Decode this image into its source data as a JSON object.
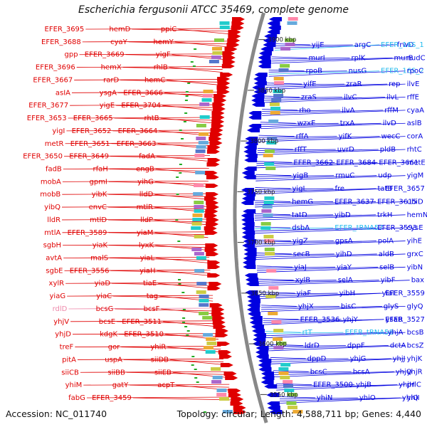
{
  "title": "Escherichia fergusonii ATCC 35469, complete genome",
  "accession": "Accession: NC_011740",
  "topology": "Topology: circular; Length: 4,588,711 bp; Genes: 4,440",
  "colors": {
    "forward": "#e00000",
    "reverse": "#0000e0",
    "rna": "#22bbee",
    "pseudo": "#ee88aa",
    "backbone": "#888888"
  },
  "kbp_ticks": [
    {
      "label": "3550 kbp",
      "kbp": 3550
    },
    {
      "label": "3600 kbp",
      "kbp": 3600
    },
    {
      "label": "3650 kbp",
      "kbp": 3650
    },
    {
      "label": "3700 kbp",
      "kbp": 3700
    },
    {
      "label": "3750 kbp",
      "kbp": 3750
    },
    {
      "label": "3800 kbp",
      "kbp": 3800
    },
    {
      "label": "3850 kbp",
      "kbp": 3850
    },
    {
      "label": "3900 kbp",
      "kbp": 3900
    }
  ],
  "left_labels": [
    {
      "text": "EFER_3695",
      "kind": "forward"
    },
    {
      "text": "hemD",
      "kind": "forward"
    },
    {
      "text": "ppiC",
      "kind": "forward"
    },
    {
      "text": "EFER_3688",
      "kind": "forward"
    },
    {
      "text": "cyaY",
      "kind": "forward"
    },
    {
      "text": "hemY",
      "kind": "forward"
    },
    {
      "text": "gpp",
      "kind": "forward"
    },
    {
      "text": "EFER_3669",
      "kind": "forward"
    },
    {
      "text": "yigF",
      "kind": "forward"
    },
    {
      "text": "EFER_3696",
      "kind": "forward"
    },
    {
      "text": "hemX",
      "kind": "forward"
    },
    {
      "text": "rhlB",
      "kind": "forward"
    },
    {
      "text": "EFER_3667",
      "kind": "forward"
    },
    {
      "text": "rarD",
      "kind": "forward"
    },
    {
      "text": "hemC",
      "kind": "forward"
    },
    {
      "text": "asIA",
      "kind": "forward"
    },
    {
      "text": "ysgA",
      "kind": "forward"
    },
    {
      "text": "EFER_3666",
      "kind": "forward"
    },
    {
      "text": "EFER_3677",
      "kind": "forward"
    },
    {
      "text": "yigE",
      "kind": "forward"
    },
    {
      "text": "EFER_3704",
      "kind": "forward"
    },
    {
      "text": "EFER_3653",
      "kind": "forward"
    },
    {
      "text": "EFER_3665",
      "kind": "forward"
    },
    {
      "text": "rhtB",
      "kind": "forward"
    },
    {
      "text": "yigI",
      "kind": "forward"
    },
    {
      "text": "EFER_3652",
      "kind": "forward"
    },
    {
      "text": "EFER_3664",
      "kind": "forward"
    },
    {
      "text": "metR",
      "kind": "forward"
    },
    {
      "text": "EFER_3651",
      "kind": "forward"
    },
    {
      "text": "EFER_3663",
      "kind": "forward"
    },
    {
      "text": "EFER_3650",
      "kind": "forward"
    },
    {
      "text": "EFER_3649",
      "kind": "forward"
    },
    {
      "text": "fadA",
      "kind": "forward"
    },
    {
      "text": "fadB",
      "kind": "forward"
    },
    {
      "text": "rfaH",
      "kind": "forward"
    },
    {
      "text": "engB",
      "kind": "forward"
    },
    {
      "text": "mobA",
      "kind": "forward"
    },
    {
      "text": "gpmI",
      "kind": "forward"
    },
    {
      "text": "yihG",
      "kind": "forward"
    },
    {
      "text": "mobB",
      "kind": "forward"
    },
    {
      "text": "yibK",
      "kind": "forward"
    },
    {
      "text": "lldD",
      "kind": "forward"
    },
    {
      "text": "yibQ",
      "kind": "forward"
    },
    {
      "text": "envC",
      "kind": "forward"
    },
    {
      "text": "mtlR",
      "kind": "forward"
    },
    {
      "text": "lldR",
      "kind": "forward"
    },
    {
      "text": "mtlD",
      "kind": "forward"
    },
    {
      "text": "lldP",
      "kind": "forward"
    },
    {
      "text": "mtlA",
      "kind": "forward"
    },
    {
      "text": "EFER_3589",
      "kind": "forward"
    },
    {
      "text": "yiaM",
      "kind": "forward"
    },
    {
      "text": "sgbH",
      "kind": "forward"
    },
    {
      "text": "yiaK",
      "kind": "forward"
    },
    {
      "text": "lyxK",
      "kind": "forward"
    },
    {
      "text": "avtA",
      "kind": "forward"
    },
    {
      "text": "malS",
      "kind": "forward"
    },
    {
      "text": "yiaL",
      "kind": "forward"
    },
    {
      "text": "sgbE",
      "kind": "forward"
    },
    {
      "text": "EFER_3556",
      "kind": "forward"
    },
    {
      "text": "yiaH",
      "kind": "forward"
    },
    {
      "text": "xylR",
      "kind": "forward"
    },
    {
      "text": "yiaD",
      "kind": "forward"
    },
    {
      "text": "tiaE",
      "kind": "forward"
    },
    {
      "text": "yiaG",
      "kind": "forward"
    },
    {
      "text": "yiaC",
      "kind": "forward"
    },
    {
      "text": "tag",
      "kind": "forward"
    },
    {
      "text": "rdlD",
      "kind": "pseudo"
    },
    {
      "text": "bcsG",
      "kind": "forward"
    },
    {
      "text": "bcsF",
      "kind": "forward"
    },
    {
      "text": "yhjV",
      "kind": "forward"
    },
    {
      "text": "bcsE",
      "kind": "forward"
    },
    {
      "text": "EFER_3511",
      "kind": "forward"
    },
    {
      "text": "yhjD",
      "kind": "forward"
    },
    {
      "text": "kdgK",
      "kind": "forward"
    },
    {
      "text": "EFER_3510",
      "kind": "forward"
    },
    {
      "text": "treF",
      "kind": "forward"
    },
    {
      "text": "gor",
      "kind": "forward"
    },
    {
      "text": "yhiR",
      "kind": "forward"
    },
    {
      "text": "pitA",
      "kind": "forward"
    },
    {
      "text": "uspA",
      "kind": "forward"
    },
    {
      "text": "siiDB",
      "kind": "forward"
    },
    {
      "text": "siiCB",
      "kind": "forward"
    },
    {
      "text": "siiBB",
      "kind": "forward"
    },
    {
      "text": "siiEB",
      "kind": "forward"
    },
    {
      "text": "yhiM",
      "kind": "forward"
    },
    {
      "text": "gatY",
      "kind": "forward"
    },
    {
      "text": "acpT",
      "kind": "forward"
    },
    {
      "text": "fabG",
      "kind": "forward"
    },
    {
      "text": "EFER_3459",
      "kind": "forward"
    }
  ],
  "right_labels": [
    {
      "text": "yijE",
      "kind": "reverse"
    },
    {
      "text": "argC",
      "kind": "reverse"
    },
    {
      "text": "frwD",
      "kind": "reverse"
    },
    {
      "text": "EFER_16S_1",
      "kind": "rna"
    },
    {
      "text": "murI",
      "kind": "reverse"
    },
    {
      "text": "rplK",
      "kind": "reverse"
    },
    {
      "text": "murB",
      "kind": "reverse"
    },
    {
      "text": "nudC",
      "kind": "reverse"
    },
    {
      "text": "rpoB",
      "kind": "reverse"
    },
    {
      "text": "nusG",
      "kind": "reverse"
    },
    {
      "text": "EFER_16S_2",
      "kind": "rna"
    },
    {
      "text": "rpoC",
      "kind": "reverse"
    },
    {
      "text": "yifE",
      "kind": "reverse"
    },
    {
      "text": "zraR",
      "kind": "reverse"
    },
    {
      "text": "rep",
      "kind": "reverse"
    },
    {
      "text": "ilvE",
      "kind": "reverse"
    },
    {
      "text": "zraS",
      "kind": "reverse"
    },
    {
      "text": "ilvC",
      "kind": "reverse"
    },
    {
      "text": "ilvL",
      "kind": "reverse"
    },
    {
      "text": "rffE",
      "kind": "reverse"
    },
    {
      "text": "rho",
      "kind": "reverse"
    },
    {
      "text": "ilvA",
      "kind": "reverse"
    },
    {
      "text": "rffM",
      "kind": "reverse"
    },
    {
      "text": "cyaA",
      "kind": "reverse"
    },
    {
      "text": "wzxE",
      "kind": "reverse"
    },
    {
      "text": "trxA",
      "kind": "reverse"
    },
    {
      "text": "ilvD",
      "kind": "reverse"
    },
    {
      "text": "aslB",
      "kind": "reverse"
    },
    {
      "text": "rffA",
      "kind": "reverse"
    },
    {
      "text": "yifK",
      "kind": "reverse"
    },
    {
      "text": "wecC",
      "kind": "reverse"
    },
    {
      "text": "corA",
      "kind": "reverse"
    },
    {
      "text": "rffT",
      "kind": "reverse"
    },
    {
      "text": "uvrD",
      "kind": "reverse"
    },
    {
      "text": "pldB",
      "kind": "reverse"
    },
    {
      "text": "rhtC",
      "kind": "reverse"
    },
    {
      "text": "EFER_3662",
      "kind": "reverse"
    },
    {
      "text": "EFER_3684",
      "kind": "reverse"
    },
    {
      "text": "EFER_3661",
      "kind": "reverse"
    },
    {
      "text": "metE",
      "kind": "reverse"
    },
    {
      "text": "yigB",
      "kind": "reverse"
    },
    {
      "text": "rmuC",
      "kind": "reverse"
    },
    {
      "text": "udp",
      "kind": "reverse"
    },
    {
      "text": "yigM",
      "kind": "reverse"
    },
    {
      "text": "yigL",
      "kind": "reverse"
    },
    {
      "text": "fre",
      "kind": "reverse"
    },
    {
      "text": "tatB",
      "kind": "reverse"
    },
    {
      "text": "EFER_3657",
      "kind": "reverse"
    },
    {
      "text": "hemG",
      "kind": "reverse"
    },
    {
      "text": "EFER_3637",
      "kind": "reverse"
    },
    {
      "text": "EFER_3615",
      "kind": "reverse"
    },
    {
      "text": "ubiD",
      "kind": "reverse"
    },
    {
      "text": "tatD",
      "kind": "reverse"
    },
    {
      "text": "yibD",
      "kind": "reverse"
    },
    {
      "text": "trkH",
      "kind": "reverse"
    },
    {
      "text": "hemN",
      "kind": "reverse"
    },
    {
      "text": "dsbA",
      "kind": "reverse"
    },
    {
      "text": "EFER_tRNA57",
      "kind": "rna"
    },
    {
      "text": "EFER_3593",
      "kind": "reverse"
    },
    {
      "text": "cysE",
      "kind": "reverse"
    },
    {
      "text": "yigZ",
      "kind": "reverse"
    },
    {
      "text": "gpsA",
      "kind": "reverse"
    },
    {
      "text": "polA",
      "kind": "reverse"
    },
    {
      "text": "yihE",
      "kind": "reverse"
    },
    {
      "text": "secB",
      "kind": "reverse"
    },
    {
      "text": "yihD",
      "kind": "reverse"
    },
    {
      "text": "aldB",
      "kind": "reverse"
    },
    {
      "text": "grxC",
      "kind": "reverse"
    },
    {
      "text": "yiaJ",
      "kind": "reverse"
    },
    {
      "text": "yiaY",
      "kind": "reverse"
    },
    {
      "text": "selB",
      "kind": "reverse"
    },
    {
      "text": "yibN",
      "kind": "reverse"
    },
    {
      "text": "xylB",
      "kind": "reverse"
    },
    {
      "text": "selA",
      "kind": "reverse"
    },
    {
      "text": "yibF",
      "kind": "reverse"
    },
    {
      "text": "bax",
      "kind": "reverse"
    },
    {
      "text": "yiaF",
      "kind": "reverse"
    },
    {
      "text": "yibH",
      "kind": "reverse"
    },
    {
      "text": "yiaI",
      "kind": "reverse"
    },
    {
      "text": "EFER_3559",
      "kind": "reverse"
    },
    {
      "text": "yhjX",
      "kind": "reverse"
    },
    {
      "text": "bisC",
      "kind": "reverse"
    },
    {
      "text": "glyS",
      "kind": "reverse"
    },
    {
      "text": "glyQ",
      "kind": "reverse"
    },
    {
      "text": "EFER_3536",
      "kind": "reverse"
    },
    {
      "text": "yhjY",
      "kind": "reverse"
    },
    {
      "text": "ysaB",
      "kind": "reverse"
    },
    {
      "text": "EFER_3527",
      "kind": "reverse"
    },
    {
      "text": "rtT",
      "kind": "rna"
    },
    {
      "text": "EFER_tRNA58",
      "kind": "rna"
    },
    {
      "text": "yhjA",
      "kind": "reverse"
    },
    {
      "text": "bcsB",
      "kind": "reverse"
    },
    {
      "text": "ldrD",
      "kind": "reverse"
    },
    {
      "text": "dppF",
      "kind": "reverse"
    },
    {
      "text": "dctA",
      "kind": "reverse"
    },
    {
      "text": "bcsZ",
      "kind": "reverse"
    },
    {
      "text": "dppD",
      "kind": "reverse"
    },
    {
      "text": "yhjG",
      "kind": "reverse"
    },
    {
      "text": "yhjJ",
      "kind": "reverse"
    },
    {
      "text": "yhjK",
      "kind": "reverse"
    },
    {
      "text": "bcsC",
      "kind": "reverse"
    },
    {
      "text": "bcsA",
      "kind": "reverse"
    },
    {
      "text": "yhjQ",
      "kind": "reverse"
    },
    {
      "text": "yhjR",
      "kind": "reverse"
    },
    {
      "text": "EFER_3500",
      "kind": "reverse"
    },
    {
      "text": "yhjB",
      "kind": "reverse"
    },
    {
      "text": "yhjH",
      "kind": "reverse"
    },
    {
      "text": "prlC",
      "kind": "reverse"
    },
    {
      "text": "yhiN",
      "kind": "reverse"
    },
    {
      "text": "yhiO",
      "kind": "reverse"
    },
    {
      "text": "yhiQ",
      "kind": "reverse"
    },
    {
      "text": "yhiI",
      "kind": "reverse"
    }
  ]
}
